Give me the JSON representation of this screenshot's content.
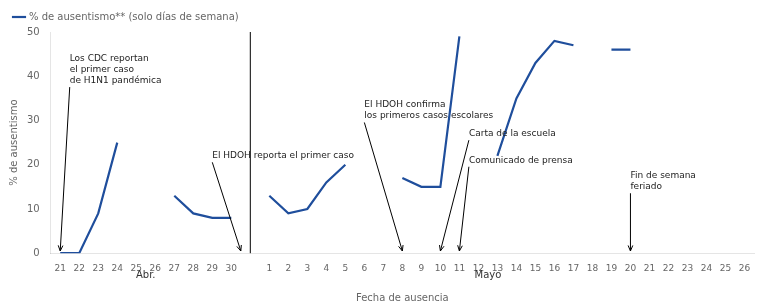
{
  "chart_data": {
    "type": "line",
    "xlabel": "Fecha de ausencia",
    "ylabel": "% de ausentismo",
    "categories": [
      "21",
      "22",
      "23",
      "24",
      "25",
      "26",
      "27",
      "28",
      "29",
      "30",
      null,
      "1",
      "2",
      "3",
      "4",
      "5",
      "6",
      "7",
      "8",
      "9",
      "10",
      "11",
      "12",
      "13",
      "14",
      "15",
      "16",
      "17",
      "18",
      "19",
      "20",
      "21",
      "22",
      "23",
      "24",
      "25",
      "26"
    ],
    "series": [
      {
        "name": "% de ausentismo** (solo días de semana)",
        "color": "#1F4E9C",
        "values": [
          0,
          0,
          9,
          25,
          null,
          null,
          13,
          9,
          8,
          8,
          null,
          13,
          9,
          10,
          16,
          20,
          null,
          null,
          17,
          15,
          15,
          49,
          null,
          22,
          35,
          43,
          48,
          47,
          null,
          46,
          46,
          null,
          null,
          null,
          null,
          null,
          null
        ]
      }
    ],
    "ylim": [
      0,
      50
    ],
    "yticks": [
      0,
      10,
      20,
      30,
      40,
      50
    ],
    "grid": false,
    "legend": "upper left",
    "annotations": [
      {
        "text": "Abr.",
        "x": 4.5
      },
      {
        "text": "Mayo",
        "x": 22.5
      },
      {
        "text": "Los CDC reportan\nel primer caso\nde H1N1 pandémica",
        "x": 0,
        "y": 0.5,
        "text_x": 0.5,
        "text_y": 38
      },
      {
        "text": "El HDOH reporta el primer caso",
        "x": 9.5,
        "y": 0.5,
        "text_x": 8.0,
        "text_y": 21
      },
      {
        "text": "El HDOH confirma\nlos primeros casos escolares",
        "x": 18,
        "y": 0.5,
        "text_x": 16.0,
        "text_y": 30
      },
      {
        "text": "Carta de la escuela",
        "x": 20,
        "y": 0.5,
        "text_x": 21.5,
        "text_y": 26
      },
      {
        "text": "Comunicado de prensa",
        "x": 21,
        "y": 0.5,
        "text_x": 21.5,
        "text_y": 20
      },
      {
        "text": "Fin de semana\nferiado",
        "x": 30,
        "y": 0.5,
        "text_x": 30.0,
        "text_y": 14
      }
    ]
  }
}
